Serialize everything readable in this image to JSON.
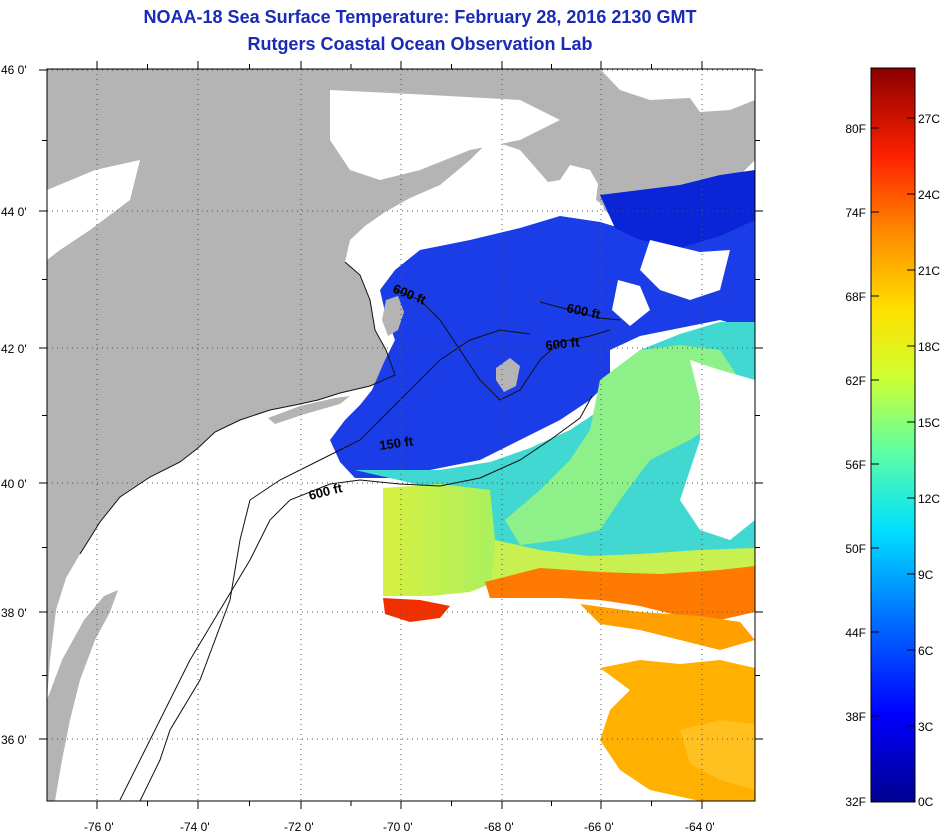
{
  "header": {
    "title": "NOAA-18 Sea Surface Temperature:  February 28, 2016 2130 GMT",
    "subtitle": "Rutgers Coastal Ocean Observation Lab"
  },
  "map": {
    "lat_labels": [
      "46 0'",
      "44 0'",
      "42 0'",
      "40 0'",
      "38 0'",
      "36 0'"
    ],
    "lon_labels": [
      "-76 0'",
      "-74 0'",
      "-72 0'",
      "-70 0'",
      "-68 0'",
      "-66 0'",
      "-64 0'"
    ],
    "lat_range": [
      35,
      46
    ],
    "lon_range": [
      -77,
      -63
    ],
    "contour_labels": [
      "600 ft",
      "600 ft",
      "600 ft",
      "150 ft",
      "600 ft"
    ],
    "land_color": "#b4b4b4",
    "cloud_color": "#ffffff"
  },
  "colorbar": {
    "fahrenheit_labels": [
      "80F",
      "74F",
      "68F",
      "62F",
      "56F",
      "50F",
      "44F",
      "38F",
      "32F"
    ],
    "celsius_labels": [
      "27C",
      "24C",
      "21C",
      "18C",
      "15C",
      "12C",
      "9C",
      "6C",
      "3C",
      "0C"
    ],
    "range_c": [
      0,
      29
    ],
    "colors": [
      "#00008f",
      "#0000ff",
      "#0080ff",
      "#00ffff",
      "#80ff80",
      "#ffff00",
      "#ff8000",
      "#ff0000",
      "#800000"
    ]
  }
}
